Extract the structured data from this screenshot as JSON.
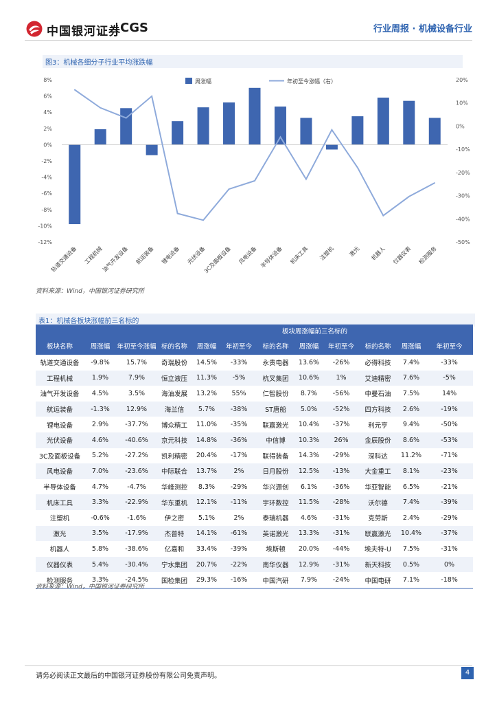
{
  "header": {
    "logo_cn": "中国银河证券",
    "logo_en": "CGS",
    "report_type": "行业周报 · 机械设备行业"
  },
  "figure": {
    "caption": "图3：机械各细分子行业平均涨跌幅",
    "source": "资料来源：Wind，中国银河证券研究所"
  },
  "chart_data": {
    "type": "bar",
    "title": "机械各细分子行业平均涨跌幅",
    "categories": [
      "轨道交通设备",
      "工程机械",
      "油气开发设备",
      "航运装备",
      "锂电设备",
      "光伏设备",
      "3C及面板设备",
      "风电设备",
      "半导体设备",
      "机床工具",
      "注塑机",
      "激光",
      "机器人",
      "仪器仪表",
      "检测服务"
    ],
    "series": [
      {
        "name": "周涨幅",
        "type": "bar",
        "axis": "left",
        "color": "#3e66b0",
        "values": [
          -9.8,
          1.9,
          4.5,
          -1.3,
          2.9,
          4.6,
          5.2,
          7.0,
          4.7,
          3.3,
          -0.6,
          3.5,
          5.8,
          5.4,
          3.3
        ]
      },
      {
        "name": "年初至今涨幅（右）",
        "type": "line",
        "axis": "right",
        "color": "#8eaadb",
        "values": [
          15.7,
          7.9,
          3.5,
          12.9,
          -37.7,
          -40.6,
          -27.2,
          -23.6,
          -4.7,
          -22.9,
          -1.6,
          -17.9,
          -38.6,
          -30.4,
          -24.5
        ]
      }
    ],
    "y_left": {
      "min": -12,
      "max": 8,
      "step": 2,
      "suffix": "%"
    },
    "y_right": {
      "min": -50,
      "max": 20,
      "step": 10,
      "suffix": "%"
    },
    "legend_position": "top"
  },
  "table": {
    "caption": "表1：机械各板块涨幅前三名标的",
    "source": "资料来源：Wind，中国银河证券研究所",
    "header_group": "板块周涨幅前三名标的",
    "columns": [
      "板块名称",
      "周涨幅",
      "年初至今涨幅",
      "标的名称",
      "周涨幅",
      "年初至今",
      "标的名称",
      "周涨幅",
      "年初至今",
      "标的名称",
      "周涨幅",
      "年初至今"
    ],
    "rows": [
      [
        "轨道交通设备",
        "-9.8%",
        "15.7%",
        "奇瑞股份",
        "14.5%",
        "-33%",
        "永贵电器",
        "13.6%",
        "-26%",
        "必得科技",
        "7.4%",
        "-33%"
      ],
      [
        "工程机械",
        "1.9%",
        "7.9%",
        "恒立液压",
        "11.3%",
        "-5%",
        "杭叉集团",
        "10.6%",
        "1%",
        "艾迪精密",
        "7.6%",
        "-5%"
      ],
      [
        "油气开发设备",
        "4.5%",
        "3.5%",
        "海油发展",
        "13.2%",
        "55%",
        "仁智股份",
        "8.7%",
        "-56%",
        "中曼石油",
        "7.5%",
        "14%"
      ],
      [
        "航运装备",
        "-1.3%",
        "12.9%",
        "海兰信",
        "5.7%",
        "-38%",
        "ST唐船",
        "5.0%",
        "-52%",
        "四方科技",
        "2.6%",
        "-19%"
      ],
      [
        "锂电设备",
        "2.9%",
        "-37.7%",
        "博众精工",
        "11.0%",
        "-35%",
        "联赢激光",
        "10.4%",
        "-37%",
        "利元亨",
        "9.4%",
        "-50%"
      ],
      [
        "光伏设备",
        "4.6%",
        "-40.6%",
        "京元科技",
        "14.8%",
        "-36%",
        "中信博",
        "10.3%",
        "26%",
        "金辰股份",
        "8.6%",
        "-53%"
      ],
      [
        "3C及面板设备",
        "5.2%",
        "-27.2%",
        "凯利精密",
        "20.4%",
        "-17%",
        "联得装备",
        "14.3%",
        "-29%",
        "深科达",
        "11.2%",
        "-71%"
      ],
      [
        "风电设备",
        "7.0%",
        "-23.6%",
        "中际联合",
        "13.7%",
        "2%",
        "日月股份",
        "12.5%",
        "-13%",
        "大金重工",
        "8.1%",
        "-23%"
      ],
      [
        "半导体设备",
        "4.7%",
        "-4.7%",
        "华峰测控",
        "8.3%",
        "-29%",
        "华兴源创",
        "6.1%",
        "-36%",
        "华亚智能",
        "6.5%",
        "-21%"
      ],
      [
        "机床工具",
        "3.3%",
        "-22.9%",
        "华东重机",
        "12.1%",
        "-11%",
        "宇环数控",
        "11.5%",
        "-28%",
        "沃尔德",
        "7.4%",
        "-39%"
      ],
      [
        "注塑机",
        "-0.6%",
        "-1.6%",
        "伊之密",
        "5.1%",
        "2%",
        "泰瑞机器",
        "4.6%",
        "-31%",
        "克劳斯",
        "2.4%",
        "-29%"
      ],
      [
        "激光",
        "3.5%",
        "-17.9%",
        "杰普特",
        "14.1%",
        "-61%",
        "英诺激光",
        "13.3%",
        "-31%",
        "联赢激光",
        "10.4%",
        "-37%"
      ],
      [
        "机器人",
        "5.8%",
        "-38.6%",
        "亿嘉和",
        "33.4%",
        "-39%",
        "埃斯顿",
        "20.0%",
        "-44%",
        "埃夫特-U",
        "7.5%",
        "-31%"
      ],
      [
        "仪器仪表",
        "5.4%",
        "-30.4%",
        "宁水集团",
        "20.7%",
        "-22%",
        "南华仪器",
        "12.9%",
        "-31%",
        "新天科技",
        "0.5%",
        "0%"
      ],
      [
        "检测服务",
        "3.3%",
        "-24.5%",
        "国检集团",
        "29.3%",
        "-16%",
        "中国汽研",
        "7.9%",
        "-24%",
        "中国电研",
        "7.1%",
        "-18%"
      ]
    ]
  },
  "footer": {
    "disclaimer": "请务必阅读正文最后的中国银河证券股份有限公司免责声明。",
    "page": "4"
  }
}
